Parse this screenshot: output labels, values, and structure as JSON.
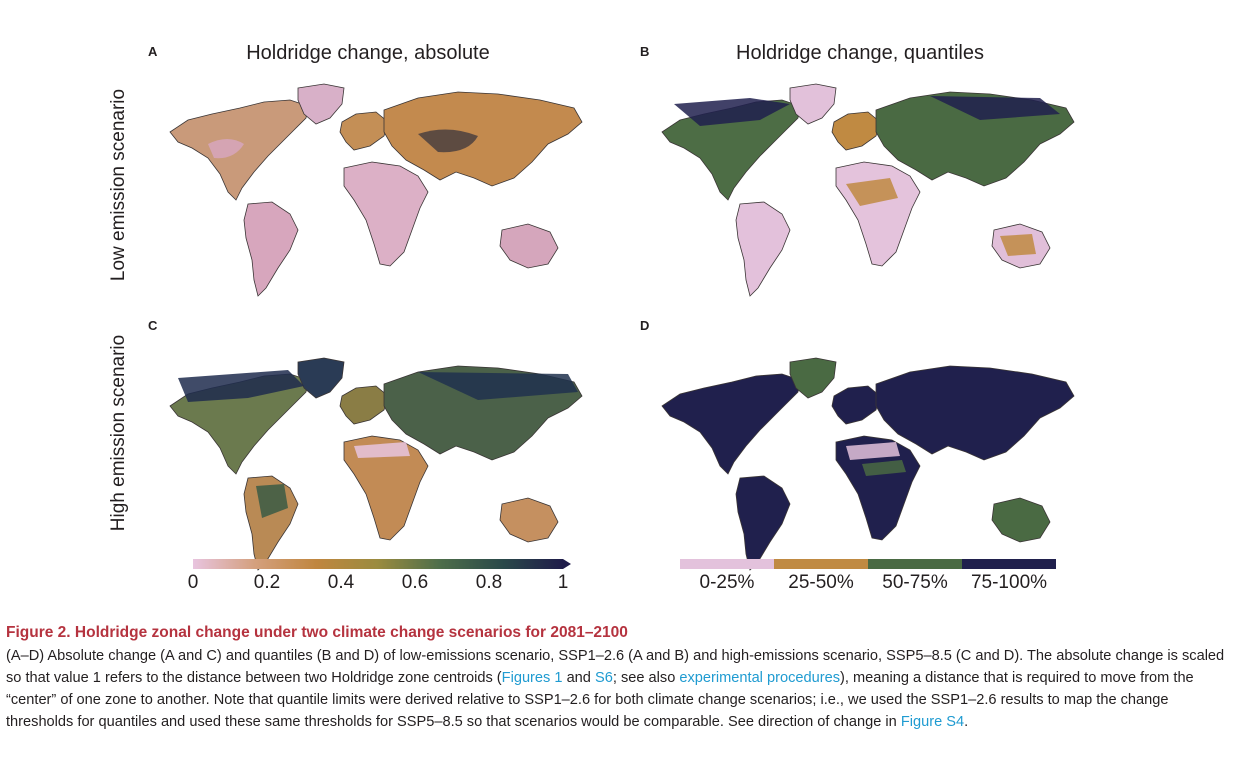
{
  "row_labels": {
    "top": "Low emission scenario",
    "bottom": "High emission scenario"
  },
  "panels": [
    {
      "letter": "A",
      "title": "Holdridge change, absolute",
      "scheme": "absolute",
      "scenario": "low"
    },
    {
      "letter": "B",
      "title": "Holdridge change, quantiles",
      "scheme": "quantile",
      "scenario": "low"
    },
    {
      "letter": "C",
      "title": "",
      "scheme": "absolute",
      "scenario": "high"
    },
    {
      "letter": "D",
      "title": "",
      "scheme": "quantile",
      "scenario": "high"
    }
  ],
  "colorbar_absolute": {
    "ticks": [
      "0",
      "0.2",
      "0.4",
      "0.6",
      "0.8",
      "1"
    ],
    "range": [
      0,
      1
    ],
    "colors": [
      "#e8c4df",
      "#d4a07e",
      "#c0863f",
      "#9a8b3f",
      "#4e6e4a",
      "#2b4a4a",
      "#1f1c4a"
    ]
  },
  "colorbar_quantiles": {
    "labels": [
      "0-25%",
      "25-50%",
      "50-75%",
      "75-100%"
    ],
    "colors": [
      "#e3c2dc",
      "#c08a42",
      "#4a6a43",
      "#20204d"
    ]
  },
  "caption": {
    "title": "Figure 2. Holdridge zonal change under two climate change scenarios for 2081–2100",
    "text1": "(A–D) Absolute change (A and C) and quantiles (B and D) of low-emissions scenario, SSP1–2.6 (A and B) and high-emissions scenario, SSP5–8.5 (C and D). The absolute change is scaled so that value 1 refers to the distance between two Holdridge zone centroids (",
    "link1": "Figures 1",
    "text2": " and ",
    "link2": "S6",
    "text3": "; see also ",
    "link3": "experimental procedures",
    "text4": "), meaning a distance that is required to move from the “center” of one zone to another. Note that quantile limits were derived relative to SSP1–2.6 for both climate change scenarios; i.e., we used the SSP1–2.6 results to map the change thresholds for quantiles and used these same thresholds for SSP5–8.5 so that scenarios would be comparable. See direction of change in ",
    "link4": "Figure S4",
    "text5": "."
  }
}
